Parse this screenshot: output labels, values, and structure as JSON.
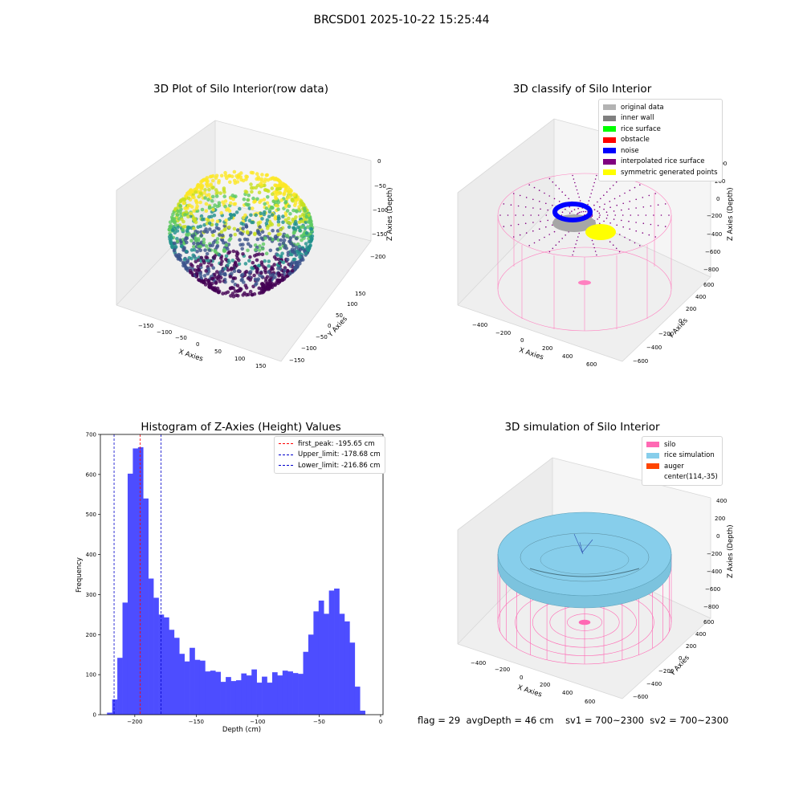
{
  "figure": {
    "suptitle": "BRCSD01 2025-10-22 15:25:44"
  },
  "panels": {
    "raw": {
      "title": "3D Plot of Silo Interior(row data)",
      "xlabel": "X Axies",
      "ylabel": "Y Axies",
      "zlabel": "Z Axies (Depth)",
      "xticks": [
        "−150",
        "−100",
        "−50",
        "0",
        "50",
        "100",
        "150"
      ],
      "yticks": [
        "150",
        "100",
        "50",
        "0",
        "−50",
        "−100",
        "−150"
      ],
      "zticks": [
        "0",
        "−50",
        "−100",
        "−150",
        "−200"
      ]
    },
    "classify": {
      "title": "3D classify of Silo Interior",
      "xlabel": "X Axies",
      "ylabel": "Y Axies",
      "zlabel": "Z Axies (Depth)",
      "xticks": [
        "−400",
        "−200",
        "0",
        "200",
        "400",
        "600"
      ],
      "yticks": [
        "600",
        "400",
        "200",
        "0",
        "−200",
        "−400",
        "−600"
      ],
      "zticks": [
        "400",
        "200",
        "0",
        "−200",
        "−400",
        "−600",
        "−800"
      ],
      "legend": [
        {
          "label": "original data",
          "color": "#b3b3b3"
        },
        {
          "label": "inner wall",
          "color": "#808080"
        },
        {
          "label": "rice surface",
          "color": "#00ff00"
        },
        {
          "label": "obstacle",
          "color": "#ff0000"
        },
        {
          "label": "noise",
          "color": "#0000ff"
        },
        {
          "label": "interpolated rice surface",
          "color": "#800080"
        },
        {
          "label": "symmetric generated points",
          "color": "#ffff00"
        }
      ]
    },
    "simulation": {
      "title": "3D simulation of Silo Interior",
      "xlabel": "X Axies",
      "ylabel": "Y Axies",
      "zlabel": "Z Axies (Depth)",
      "xticks": [
        "−400",
        "−200",
        "0",
        "200",
        "400",
        "600"
      ],
      "yticks": [
        "600",
        "400",
        "200",
        "0",
        "−200",
        "−400",
        "−600"
      ],
      "zticks": [
        "400",
        "200",
        "0",
        "−200",
        "−400",
        "−600",
        "−800"
      ],
      "legend": [
        {
          "label": "silo",
          "color": "#ff69b4"
        },
        {
          "label": "rice simulation",
          "color": "#87ceeb"
        },
        {
          "label": "auger",
          "color": "#ff4500"
        },
        {
          "label": "center(114,-35)",
          "color": ""
        }
      ]
    }
  },
  "footer": {
    "flag": "flag = 29",
    "avg": "avgDepth = 46 cm",
    "sv1": "sv1 = 700~2300",
    "sv2": "sv2 = 700~2300"
  },
  "chart_data": {
    "type": "bar",
    "title": "Histogram of Z-Axies (Height) Values",
    "xlabel": "Depth (cm)",
    "ylabel": "Frequency",
    "xlim": [
      -228,
      2
    ],
    "ylim": [
      0,
      700
    ],
    "xticks": [
      -200,
      -150,
      -100,
      -50,
      0
    ],
    "xtick_labels": [
      "−200",
      "−150",
      "−100",
      "−50",
      "0"
    ],
    "yticks": [
      0,
      100,
      200,
      300,
      400,
      500,
      600,
      700
    ],
    "bin_start": -222.6,
    "bin_width": 4.2,
    "bar_color": "#4d4dff",
    "values": [
      5,
      38,
      142,
      280,
      602,
      665,
      668,
      540,
      340,
      292,
      250,
      243,
      212,
      192,
      152,
      133,
      167,
      137,
      135,
      108,
      110,
      107,
      82,
      94,
      84,
      86,
      103,
      98,
      113,
      80,
      95,
      80,
      106,
      98,
      110,
      108,
      104,
      102,
      157,
      200,
      258,
      285,
      252,
      310,
      315,
      252,
      233,
      180,
      70,
      10
    ],
    "vlines": [
      {
        "name": "first_peak: -195.65 cm",
        "x": -195.65,
        "color": "#ff0000"
      },
      {
        "name": "Upper_limit: -178.68 cm",
        "x": -178.68,
        "color": "#0000cc"
      },
      {
        "name": "Lower_limit: -216.86 cm",
        "x": -216.86,
        "color": "#0000cc"
      }
    ]
  }
}
